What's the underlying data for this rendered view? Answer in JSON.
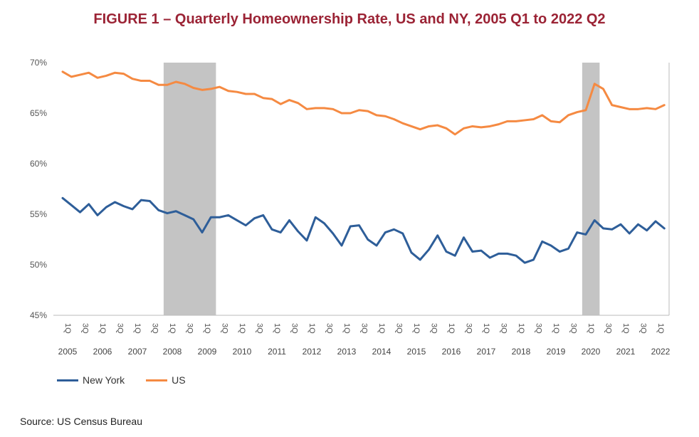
{
  "title": "FIGURE 1 – Quarterly Homeownership Rate, US and NY, 2005 Q1 to 2022 Q2",
  "source": "Source: US Census Bureau",
  "colors": {
    "title": "#9b2335",
    "new_york": "#2e5e99",
    "us": "#f58a42",
    "recession": "#c4c4c4",
    "axis": "#bbbbbb"
  },
  "chart_data": {
    "type": "line",
    "title": "FIGURE 1 – Quarterly Homeownership Rate, US and NY, 2005 Q1 to 2022 Q2",
    "xlabel": "",
    "ylabel": "",
    "ylim": [
      45,
      70
    ],
    "y_ticks": [
      "45%",
      "50%",
      "55%",
      "60%",
      "65%",
      "70%"
    ],
    "y_tick_values": [
      45,
      50,
      55,
      60,
      65,
      70
    ],
    "grid": false,
    "legend_position": "bottom-left",
    "quarter_tick_labels": [
      "1Q",
      "3Q",
      "1Q",
      "3Q",
      "1Q",
      "3Q",
      "1Q",
      "3Q",
      "1Q",
      "3Q",
      "1Q",
      "3Q",
      "1Q",
      "3Q",
      "1Q",
      "3Q",
      "1Q",
      "3Q",
      "1Q",
      "3Q",
      "1Q",
      "3Q",
      "1Q",
      "3Q",
      "1Q",
      "3Q",
      "1Q",
      "3Q",
      "1Q",
      "3Q",
      "1Q",
      "3Q",
      "1Q",
      "3Q",
      "1Q"
    ],
    "year_labels": [
      "2005",
      "2006",
      "2007",
      "2008",
      "2009",
      "2010",
      "2011",
      "2012",
      "2013",
      "2014",
      "2015",
      "2016",
      "2017",
      "2018",
      "2019",
      "2020",
      "2021",
      "2022"
    ],
    "recessions": [
      {
        "start": "2008 Q1",
        "end": "2009 Q2"
      },
      {
        "start": "2020 Q1",
        "end": "2020 Q2"
      }
    ],
    "series": [
      {
        "name": "New York",
        "color": "#2e5e99",
        "values": [
          56.6,
          55.9,
          55.2,
          56.0,
          54.9,
          55.7,
          56.2,
          55.8,
          55.5,
          56.4,
          56.3,
          55.4,
          55.1,
          55.3,
          54.9,
          54.5,
          53.2,
          54.7,
          54.7,
          54.9,
          54.4,
          53.9,
          54.6,
          54.9,
          53.5,
          53.2,
          54.4,
          53.3,
          52.4,
          54.7,
          54.1,
          53.1,
          51.9,
          53.8,
          53.9,
          52.5,
          51.9,
          53.2,
          53.5,
          53.1,
          51.2,
          50.5,
          51.5,
          52.9,
          51.3,
          50.9,
          52.7,
          51.3,
          51.4,
          50.7,
          51.1,
          51.1,
          50.9,
          50.2,
          50.5,
          52.3,
          51.9,
          51.3,
          51.6,
          53.2,
          53.0,
          54.4,
          53.6,
          53.5,
          54.0,
          53.1,
          54.0,
          53.4,
          54.3,
          53.6
        ]
      },
      {
        "name": "US",
        "color": "#f58a42",
        "values": [
          69.1,
          68.6,
          68.8,
          69.0,
          68.5,
          68.7,
          69.0,
          68.9,
          68.4,
          68.2,
          68.2,
          67.8,
          67.8,
          68.1,
          67.9,
          67.5,
          67.3,
          67.4,
          67.6,
          67.2,
          67.1,
          66.9,
          66.9,
          66.5,
          66.4,
          65.9,
          66.3,
          66.0,
          65.4,
          65.5,
          65.5,
          65.4,
          65.0,
          65.0,
          65.3,
          65.2,
          64.8,
          64.7,
          64.4,
          64.0,
          63.7,
          63.4,
          63.7,
          63.8,
          63.5,
          62.9,
          63.5,
          63.7,
          63.6,
          63.7,
          63.9,
          64.2,
          64.2,
          64.3,
          64.4,
          64.8,
          64.2,
          64.1,
          64.8,
          65.1,
          65.3,
          67.9,
          67.4,
          65.8,
          65.6,
          65.4,
          65.4,
          65.5,
          65.4,
          65.8
        ]
      }
    ]
  }
}
